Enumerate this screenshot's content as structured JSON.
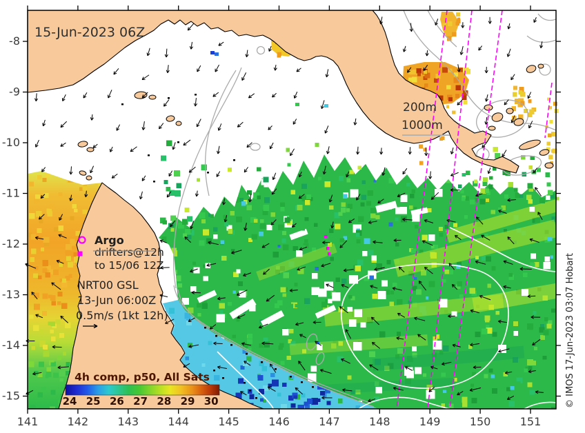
{
  "header": {
    "date_label": "15-Jun-2023 06Z"
  },
  "annotations": {
    "argo": {
      "title": "Argo",
      "line1": "drifters@12h",
      "line2": "to 15/06 12Z"
    },
    "nrt": {
      "line1": "NRT00 GSL",
      "line2": "13-Jun 06:00Z",
      "line3": "0.5m/s (1kt 12h)"
    },
    "depth": {
      "d200": "200m",
      "d1000": "1000m"
    },
    "copyright": "© IMOS 17-Jun-2023 03:07 Hobart"
  },
  "colorbar": {
    "title": "4h comp, p50, All Sats",
    "ticks": [
      24,
      25,
      26,
      27,
      28,
      29,
      30
    ],
    "gradient": [
      {
        "o": 0,
        "c": "#10109e"
      },
      {
        "o": 0.07,
        "c": "#1f2ad0"
      },
      {
        "o": 0.14,
        "c": "#2058e8"
      },
      {
        "o": 0.21,
        "c": "#2a9ce8"
      },
      {
        "o": 0.28,
        "c": "#2cc8cf"
      },
      {
        "o": 0.34,
        "c": "#2cc795"
      },
      {
        "o": 0.41,
        "c": "#2cbf52"
      },
      {
        "o": 0.48,
        "c": "#47c832"
      },
      {
        "o": 0.55,
        "c": "#83d42a"
      },
      {
        "o": 0.62,
        "c": "#bbe022"
      },
      {
        "o": 0.68,
        "c": "#e9e522"
      },
      {
        "o": 0.75,
        "c": "#f1c122"
      },
      {
        "o": 0.82,
        "c": "#ea9318"
      },
      {
        "o": 0.88,
        "c": "#d9630f"
      },
      {
        "o": 0.94,
        "c": "#bb3a08"
      },
      {
        "o": 1,
        "c": "#7f1a02"
      }
    ]
  },
  "axes": {
    "x_ticks": [
      141,
      142,
      143,
      144,
      145,
      146,
      147,
      148,
      149,
      150,
      151
    ],
    "y_ticks": [
      -8,
      -9,
      -10,
      -11,
      -12,
      -13,
      -14,
      -15
    ]
  },
  "markers": {
    "argo_float": "magenta-circle-outline",
    "drifter": "magenta-filled-square"
  },
  "colors": {
    "land": "#f7c99b",
    "sea_nodata": "#ffffff",
    "coastline": "#000000",
    "bathymetry_contour": "#ababab",
    "sea_level_contour": "#ffffff",
    "satellite_track": "#ff00ff",
    "current_arrow": "#000000",
    "argo_marker": "#ff00ff",
    "colorbar_title": "#4d1600",
    "axis_label": "#3c3c3c",
    "annotation_text": "#1f1f1f"
  }
}
